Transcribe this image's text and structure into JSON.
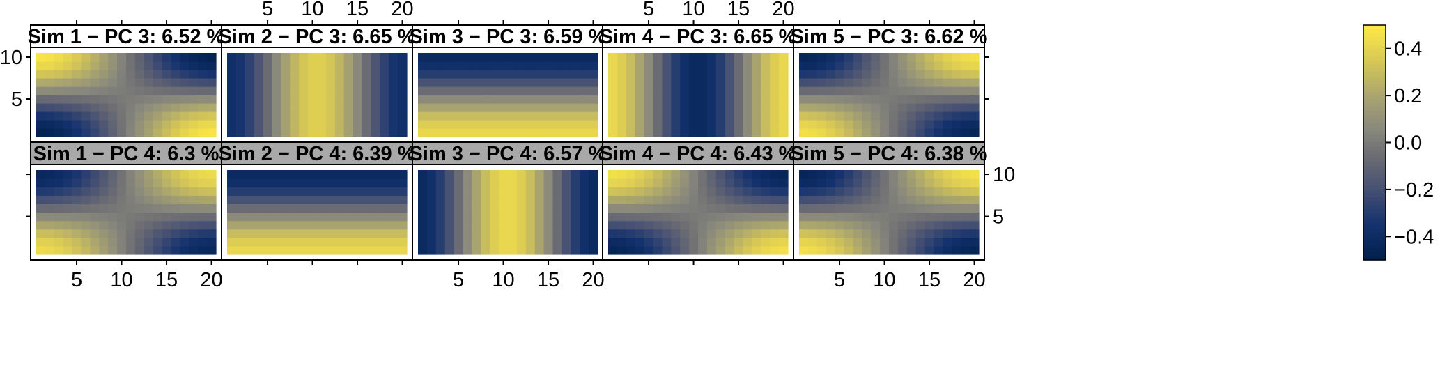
{
  "chart_data": {
    "type": "heatmap",
    "title": "",
    "grid_size": {
      "cols": 20,
      "rows": 10
    },
    "x_ticks": [
      5,
      10,
      15,
      20
    ],
    "y_ticks": [
      5,
      10
    ],
    "colorbar": {
      "colormap": "cividis",
      "range": [
        -0.5,
        0.5
      ],
      "ticks": [
        0.4,
        0.2,
        0.0,
        -0.2,
        -0.4
      ],
      "tick_labels": [
        "0.4",
        "0.2",
        "0.0",
        "−0.2",
        "−0.4"
      ],
      "position": "right"
    },
    "panels": [
      {
        "title": "Sim 1 − PC 3: 6.52 %",
        "sim": 1,
        "pc": 3,
        "variance_pct": 6.52,
        "pattern": {
          "fx": 1,
          "fy": 1,
          "phx": 0.0,
          "phy": 3.14159,
          "amp": 0.48
        }
      },
      {
        "title": "Sim 2 − PC 3: 6.65 %",
        "sim": 2,
        "pc": 3,
        "variance_pct": 6.65,
        "pattern": {
          "fx": 2,
          "fy": 0,
          "phx": 3.14159,
          "phy": 0,
          "amp": 0.38
        }
      },
      {
        "title": "Sim 3 − PC 3: 6.59 %",
        "sim": 3,
        "pc": 3,
        "variance_pct": 6.59,
        "pattern": {
          "fx": 0,
          "fy": 1,
          "phx": 0,
          "phy": 0.0,
          "amp": 0.42
        }
      },
      {
        "title": "Sim 4 − PC 3: 6.65 %",
        "sim": 4,
        "pc": 3,
        "variance_pct": 6.65,
        "pattern": {
          "fx": 2,
          "fy": 0,
          "phx": 0.0,
          "phy": 0,
          "amp": 0.42
        }
      },
      {
        "title": "Sim 5 − PC 3: 6.62 %",
        "sim": 5,
        "pc": 3,
        "variance_pct": 6.62,
        "pattern": {
          "fx": 1,
          "fy": 1,
          "phx": 0.0,
          "phy": 0.0,
          "amp": 0.46
        }
      },
      {
        "title": "Sim 1 − PC 4: 6.3 %",
        "sim": 1,
        "pc": 4,
        "variance_pct": 6.3,
        "pattern": {
          "fx": 1,
          "fy": 1,
          "phx": 3.14159,
          "phy": 3.14159,
          "amp": 0.44
        }
      },
      {
        "title": "Sim 2 − PC 4: 6.39 %",
        "sim": 2,
        "pc": 4,
        "variance_pct": 6.39,
        "pattern": {
          "fx": 0,
          "fy": 1,
          "phx": 0,
          "phy": 0.0,
          "amp": 0.42
        }
      },
      {
        "title": "Sim 3 − PC 4: 6.57 %",
        "sim": 3,
        "pc": 4,
        "variance_pct": 6.57,
        "pattern": {
          "fx": 2,
          "fy": 0,
          "phx": 3.14159,
          "phy": 0,
          "amp": 0.42
        }
      },
      {
        "title": "Sim 4 − PC 4: 6.43 %",
        "sim": 4,
        "pc": 4,
        "variance_pct": 6.43,
        "pattern": {
          "fx": 1,
          "fy": 1,
          "phx": 0.0,
          "phy": 3.14159,
          "amp": 0.46
        }
      },
      {
        "title": "Sim 5 − PC 4: 6.38 %",
        "sim": 5,
        "pc": 4,
        "variance_pct": 6.38,
        "pattern": {
          "fx": 1,
          "fy": 1,
          "phx": 3.14159,
          "phy": 3.14159,
          "amp": 0.46
        }
      }
    ]
  }
}
